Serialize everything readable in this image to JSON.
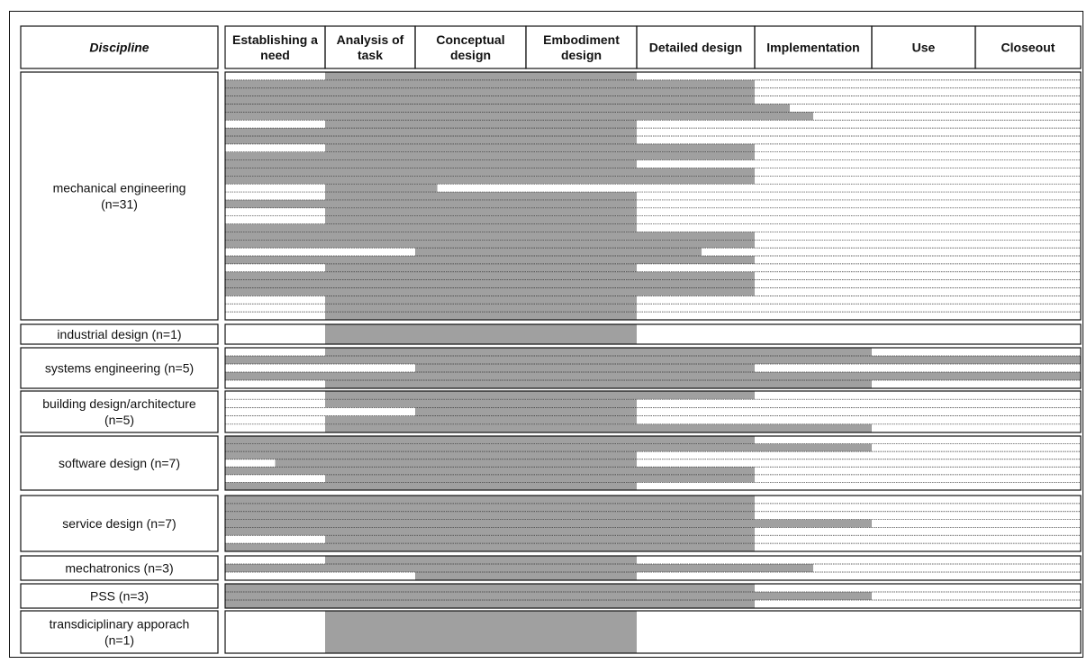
{
  "chart_data": {
    "type": "table",
    "header": {
      "discipline": "Discipline",
      "phases": [
        [
          "Establishing a",
          "need"
        ],
        [
          "Analysis of",
          "task"
        ],
        [
          "Conceptual",
          "design"
        ],
        [
          "Embodiment",
          "design"
        ],
        [
          "Detailed design"
        ],
        [
          "Implementation"
        ],
        [
          "Use"
        ],
        [
          "Closeout"
        ]
      ]
    },
    "colors": {
      "covered": "#a0a0a0",
      "line": "#111111"
    },
    "groups": [
      {
        "label": [
          "mechanical engineering",
          "(n=31)"
        ],
        "rows": [
          [
            1,
            4
          ],
          [
            0,
            5
          ],
          [
            0,
            5
          ],
          [
            0,
            5
          ],
          [
            0,
            5.3
          ],
          [
            0,
            5.5
          ],
          [
            1,
            4
          ],
          [
            0,
            4
          ],
          [
            0,
            4
          ],
          [
            1,
            5
          ],
          [
            0,
            5
          ],
          [
            0,
            4
          ],
          [
            0,
            5
          ],
          [
            0,
            5
          ],
          [
            1,
            2.2
          ],
          [
            1,
            4
          ],
          [
            0,
            4
          ],
          [
            1,
            4
          ],
          [
            1,
            4
          ],
          [
            0,
            4
          ],
          [
            0,
            5
          ],
          [
            0,
            5
          ],
          [
            2,
            4.55
          ],
          [
            0,
            5
          ],
          [
            1,
            4
          ],
          [
            0,
            5
          ],
          [
            0,
            5
          ],
          [
            0,
            5
          ],
          [
            1,
            4
          ],
          [
            1,
            4
          ],
          [
            1,
            4
          ]
        ]
      },
      {
        "label": [
          "industrial design (n=1)"
        ],
        "rows": [
          [
            1,
            4
          ]
        ]
      },
      {
        "label": [
          "systems engineering (n=5)"
        ],
        "rows": [
          [
            1,
            6
          ],
          [
            0,
            8
          ],
          [
            2,
            5
          ],
          [
            0,
            8
          ],
          [
            1,
            6
          ]
        ]
      },
      {
        "label": [
          "building design/architecture",
          "(n=5)"
        ],
        "rows": [
          [
            1,
            5
          ],
          [
            1,
            4
          ],
          [
            2,
            4
          ],
          [
            1,
            4
          ],
          [
            1,
            6
          ]
        ]
      },
      {
        "label": [
          "software design (n=7)"
        ],
        "rows": [
          [
            0,
            5
          ],
          [
            0,
            6
          ],
          [
            0,
            4
          ],
          [
            0.5,
            4
          ],
          [
            0,
            5
          ],
          [
            1,
            5
          ],
          [
            0,
            4
          ]
        ]
      },
      {
        "label": [
          "service design (n=7)"
        ],
        "rows": [
          [
            0,
            5
          ],
          [
            0,
            5
          ],
          [
            0,
            5
          ],
          [
            0,
            6
          ],
          [
            0,
            5
          ],
          [
            1,
            5
          ],
          [
            0,
            5
          ]
        ]
      },
      {
        "label": [
          "mechatronics (n=3)"
        ],
        "rows": [
          [
            1,
            4
          ],
          [
            0,
            5.5
          ],
          [
            2,
            4
          ]
        ]
      },
      {
        "label": [
          "PSS (n=3)"
        ],
        "rows": [
          [
            0,
            5
          ],
          [
            0,
            6
          ],
          [
            0,
            5
          ]
        ]
      },
      {
        "label": [
          "transdiciplinary apporach",
          "(n=1)"
        ],
        "rows": [
          [
            1,
            4
          ]
        ]
      }
    ]
  }
}
